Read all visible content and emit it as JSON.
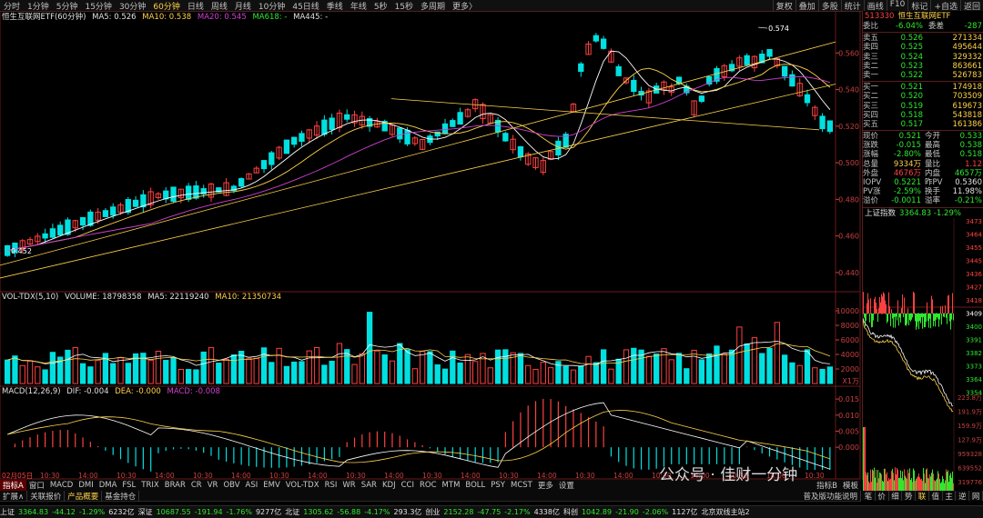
{
  "topbar": {
    "tabs": [
      "分时",
      "1分钟",
      "5分钟",
      "15分钟",
      "30分钟",
      "60分钟",
      "日线",
      "周线",
      "月线",
      "10分钟",
      "45日线",
      "季线",
      "年线",
      "5秒",
      "15秒",
      "多周期",
      "更多〉"
    ],
    "active_tab": "60分钟",
    "right_buttons": [
      "复权",
      "叠加",
      "多股",
      "统计",
      "画线",
      "F10",
      "标记",
      "+自选",
      "返回"
    ]
  },
  "main_chart": {
    "title": "恒生互联网ETF(60分钟)",
    "ma5": "MA5: 0.526",
    "ma10": "MA10: 0.538",
    "ma20": "MA20: 0.545",
    "ma618": "MA618: -",
    "ma445": "MA445: -",
    "high_label": "0.574",
    "low_label": "0.452",
    "y_ticks": [
      "0.560",
      "0.540",
      "0.520",
      "0.500",
      "0.480",
      "0.460",
      "0.440"
    ],
    "colors": {
      "up": "#ff4040",
      "down": "#00e0e0",
      "ma5": "#ffffff",
      "ma10": "#ffd24a",
      "ma20": "#d040d0"
    }
  },
  "volume": {
    "title": "VOL-TDX(5,10)",
    "volume": "VOLUME: 18798358",
    "ma5": "MA5: 22119240",
    "ma10": "MA10: 21350734",
    "y_ticks": [
      "10000",
      "8000",
      "6000",
      "4000",
      "2000"
    ],
    "unit": "X1万"
  },
  "macd": {
    "title": "MACD(12,26,9)",
    "dif": "DIF: -0.004",
    "dea": "DEA: -0.000",
    "macd": "MACD: -0.008",
    "y_ticks": [
      "0.015",
      "0.010",
      "0.005",
      "0.000"
    ]
  },
  "x_axis": [
    "02月05日",
    "10:30",
    "14:00",
    "10:30",
    "14:00",
    "10:30",
    "14:00",
    "10:30",
    "14:00",
    "10:30",
    "14:00",
    "10:30",
    "14:00",
    "10:30",
    "14:00",
    "10:30",
    "14:00",
    "10:30",
    "14:00",
    "10:30",
    "14:00",
    "10:30"
  ],
  "panel": {
    "code": "513330",
    "name": "恒生互联网ETF",
    "weibi": {
      "label": "委比",
      "value": "-6.04%",
      "label2": "委差",
      "value2": "-287"
    },
    "asks": [
      {
        "label": "卖五",
        "price": "0.526",
        "vol": "271334"
      },
      {
        "label": "卖四",
        "price": "0.525",
        "vol": "495644"
      },
      {
        "label": "卖三",
        "price": "0.524",
        "vol": "329332"
      },
      {
        "label": "卖二",
        "price": "0.523",
        "vol": "863661"
      },
      {
        "label": "卖一",
        "price": "0.522",
        "vol": "526783"
      }
    ],
    "bids": [
      {
        "label": "买一",
        "price": "0.521",
        "vol": "174918"
      },
      {
        "label": "买二",
        "price": "0.520",
        "vol": "703509"
      },
      {
        "label": "买三",
        "price": "0.519",
        "vol": "619673"
      },
      {
        "label": "买四",
        "price": "0.518",
        "vol": "543818"
      },
      {
        "label": "买五",
        "price": "0.517",
        "vol": "161386"
      }
    ],
    "stats": [
      {
        "l": "现价",
        "v": "0.521",
        "l2": "今开",
        "v2": "0.533"
      },
      {
        "l": "涨跌",
        "v": "-0.015",
        "l2": "最高",
        "v2": "0.538"
      },
      {
        "l": "涨幅",
        "v": "-2.80%",
        "l2": "最低",
        "v2": "0.518"
      },
      {
        "l": "总量",
        "v": "9334万",
        "l2": "量比",
        "v2": "1.12"
      },
      {
        "l": "外盘",
        "v": "4676万",
        "l2": "内盘",
        "v2": "4657万"
      },
      {
        "l": "IOPV",
        "v": "0.5221",
        "l2": "昨PV",
        "v2": "0.5360"
      },
      {
        "l": "PV涨",
        "v": "-2.59%",
        "l2": "换手",
        "v2": "11.98%"
      },
      {
        "l": "溢价",
        "v": "-0.0011",
        "l2": "溢率",
        "v2": "-0.21%"
      }
    ],
    "index_label": "上证指数",
    "index_value": "3364.83 -1.29%",
    "index_ticks": [
      "3473",
      "3464",
      "3455",
      "3445",
      "3436",
      "3427",
      "3418",
      "3409",
      "3400",
      "3391",
      "3382",
      "3373",
      "3364",
      "3354"
    ],
    "index_vol_ticks": [
      "223.8万",
      "191.9万",
      "159.9万",
      "127.9万",
      "959328",
      "639552",
      "319776"
    ]
  },
  "tabs_row1": [
    "指标A",
    "窗口",
    "MACD",
    "DMI",
    "DMA",
    "FSL",
    "TRIX",
    "BRAR",
    "CR",
    "VR",
    "OBV",
    "ASI",
    "EMV",
    "VOL-TDX",
    "RSI",
    "WR",
    "SAR",
    "KDJ",
    "CCI",
    "ROC",
    "MTM",
    "BOLL",
    "PSY",
    "MCST",
    "更多",
    "设置"
  ],
  "tabs_row1_right": [
    "指标B",
    "模板"
  ],
  "tabs_row2": [
    "扩展∧",
    "关联报价",
    "产品概要",
    "基金持仓"
  ],
  "tabs_row2_right": [
    "普及版功能说明"
  ],
  "right_tabs": [
    "笔",
    "价",
    "细",
    "势",
    "联",
    "值",
    "主",
    "逆",
    "网"
  ],
  "status": [
    {
      "t": "上证",
      "c": "wh"
    },
    {
      "t": "3364.83",
      "c": "dn"
    },
    {
      "t": "-44.12",
      "c": "dn"
    },
    {
      "t": "-1.29%",
      "c": "dn"
    },
    {
      "t": "6232亿",
      "c": "wh"
    },
    {
      "t": "深证",
      "c": "wh"
    },
    {
      "t": "10687.55",
      "c": "dn"
    },
    {
      "t": "-191.94",
      "c": "dn"
    },
    {
      "t": "-1.76%",
      "c": "dn"
    },
    {
      "t": "9277亿",
      "c": "wh"
    },
    {
      "t": "北证",
      "c": "wh"
    },
    {
      "t": "1305.62",
      "c": "dn"
    },
    {
      "t": "-56.88",
      "c": "dn"
    },
    {
      "t": "-4.17%",
      "c": "dn"
    },
    {
      "t": "293.3亿",
      "c": "wh"
    },
    {
      "t": "创业",
      "c": "wh"
    },
    {
      "t": "2152.28",
      "c": "dn"
    },
    {
      "t": "-47.75",
      "c": "dn"
    },
    {
      "t": "-2.17%",
      "c": "dn"
    },
    {
      "t": "4338亿",
      "c": "wh"
    },
    {
      "t": "科创",
      "c": "wh"
    },
    {
      "t": "1042.89",
      "c": "dn"
    },
    {
      "t": "-21.90",
      "c": "dn"
    },
    {
      "t": "-2.06%",
      "c": "dn"
    },
    {
      "t": "1127亿",
      "c": "wh"
    },
    {
      "t": "北京双线主站2",
      "c": "wh"
    }
  ],
  "watermark": "公众号 · 佳财一分钟"
}
